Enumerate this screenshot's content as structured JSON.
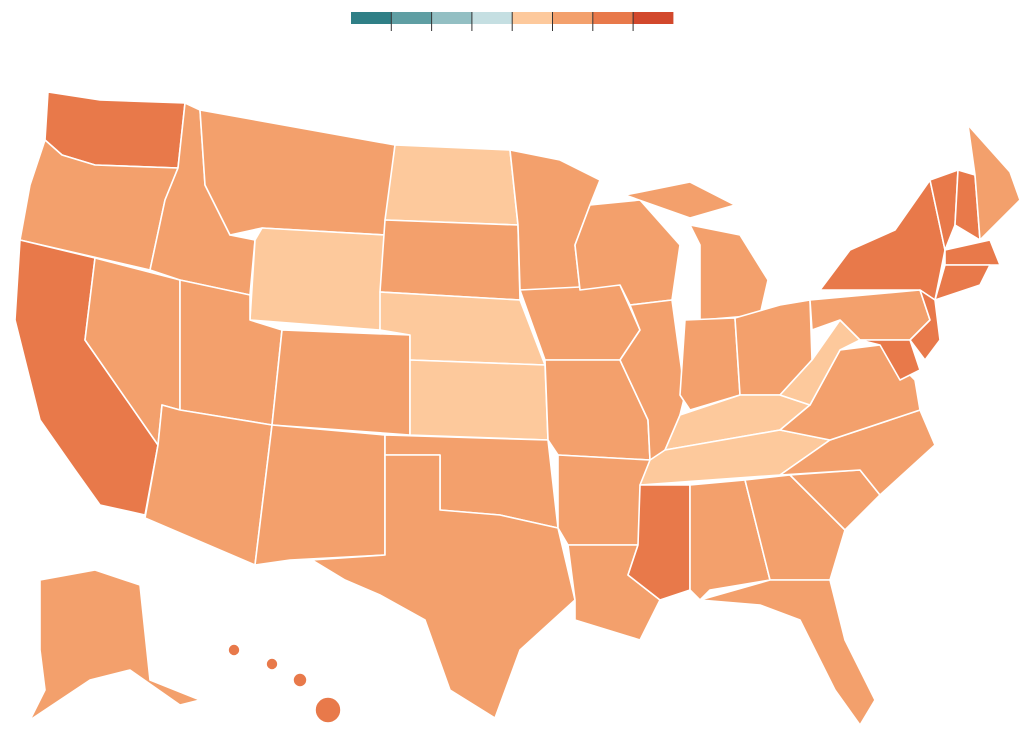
{
  "legend": {
    "colors": [
      "#2f7f86",
      "#5f9ea3",
      "#93bfc3",
      "#c5dfe2",
      "#fdc99c",
      "#f3a06c",
      "#e8794a",
      "#d2482c"
    ]
  }
}
